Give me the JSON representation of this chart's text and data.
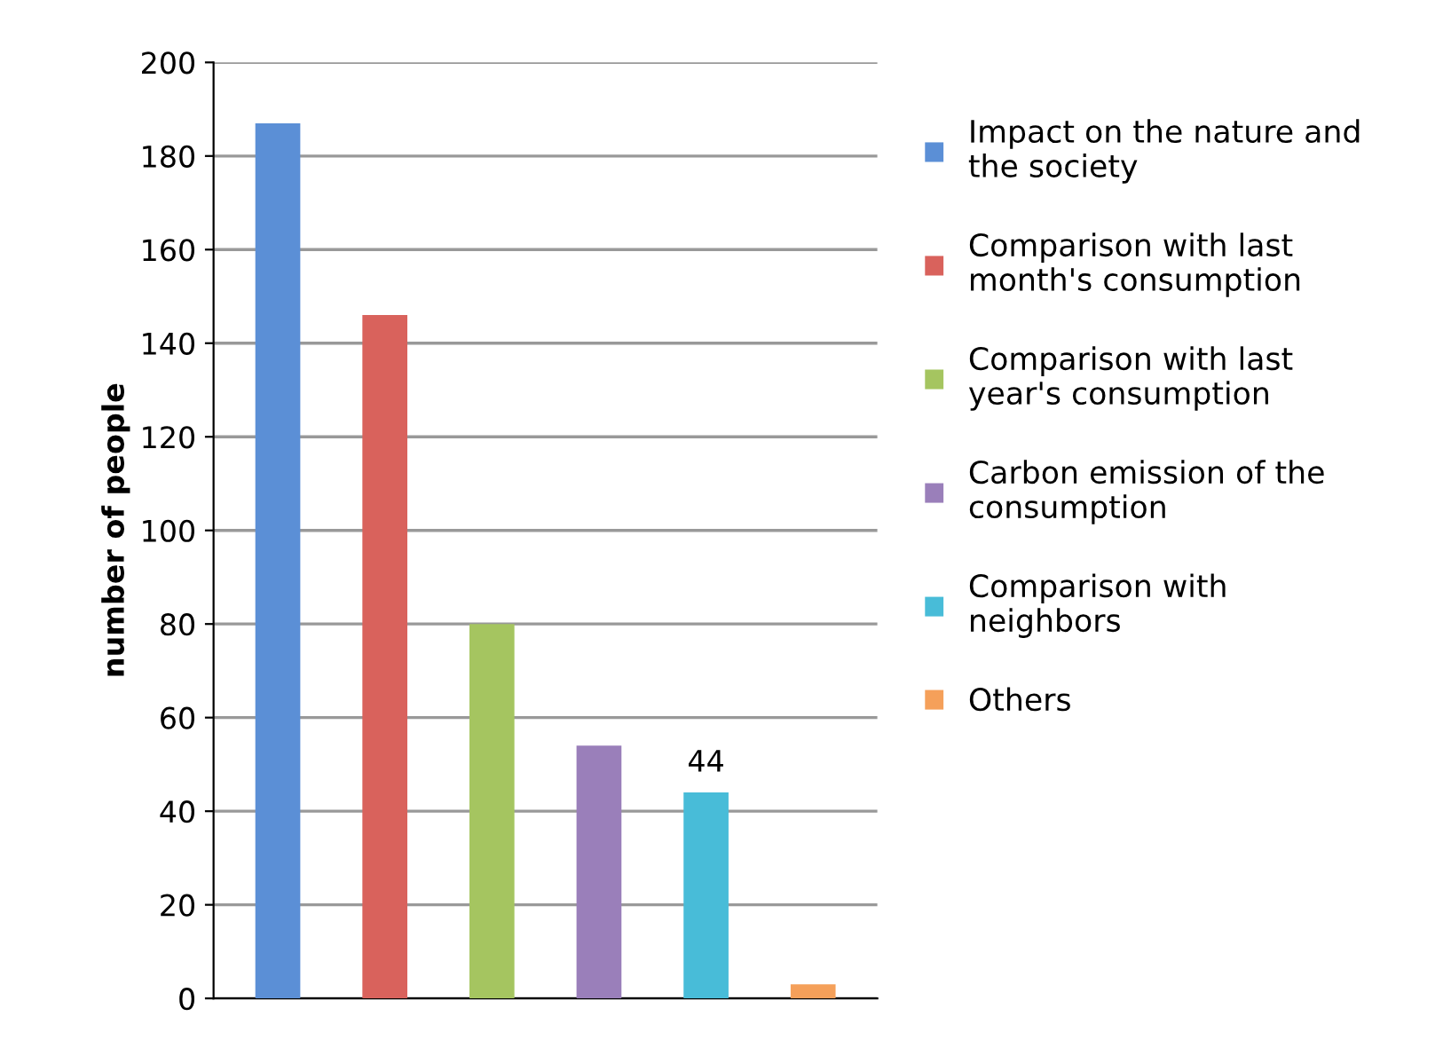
{
  "chart_data": {
    "type": "bar",
    "ylabel": "number of people",
    "categories": [
      null,
      null,
      null,
      null,
      null,
      null
    ],
    "series": [
      {
        "name": "Impact on the nature and the society",
        "color": "#5b8fd6",
        "values": [
          187,
          null,
          null,
          null,
          null,
          null
        ]
      },
      {
        "name": "Comparison with last month's consumption",
        "color": "#d9625c",
        "values": [
          null,
          146,
          null,
          null,
          null,
          null
        ]
      },
      {
        "name": "Comparison with last year's consumption",
        "color": "#a5c560",
        "values": [
          null,
          null,
          80,
          null,
          null,
          null
        ]
      },
      {
        "name": "Carbon emission of the consumption",
        "color": "#9a7fba",
        "values": [
          null,
          null,
          null,
          54,
          null,
          null
        ]
      },
      {
        "name": "Comparison with neighbors",
        "color": "#48bcd8",
        "values": [
          null,
          null,
          null,
          null,
          44,
          null
        ],
        "value_labels": [
          null,
          null,
          null,
          null,
          "44",
          null
        ]
      },
      {
        "name": "Others",
        "color": "#f5a05a",
        "values": [
          null,
          null,
          null,
          null,
          null,
          3
        ]
      }
    ],
    "ylim": [
      0,
      200
    ],
    "yticks": [
      0,
      20,
      40,
      60,
      80,
      100,
      120,
      140,
      160,
      180,
      200
    ],
    "grid": "y",
    "legend": "right"
  }
}
